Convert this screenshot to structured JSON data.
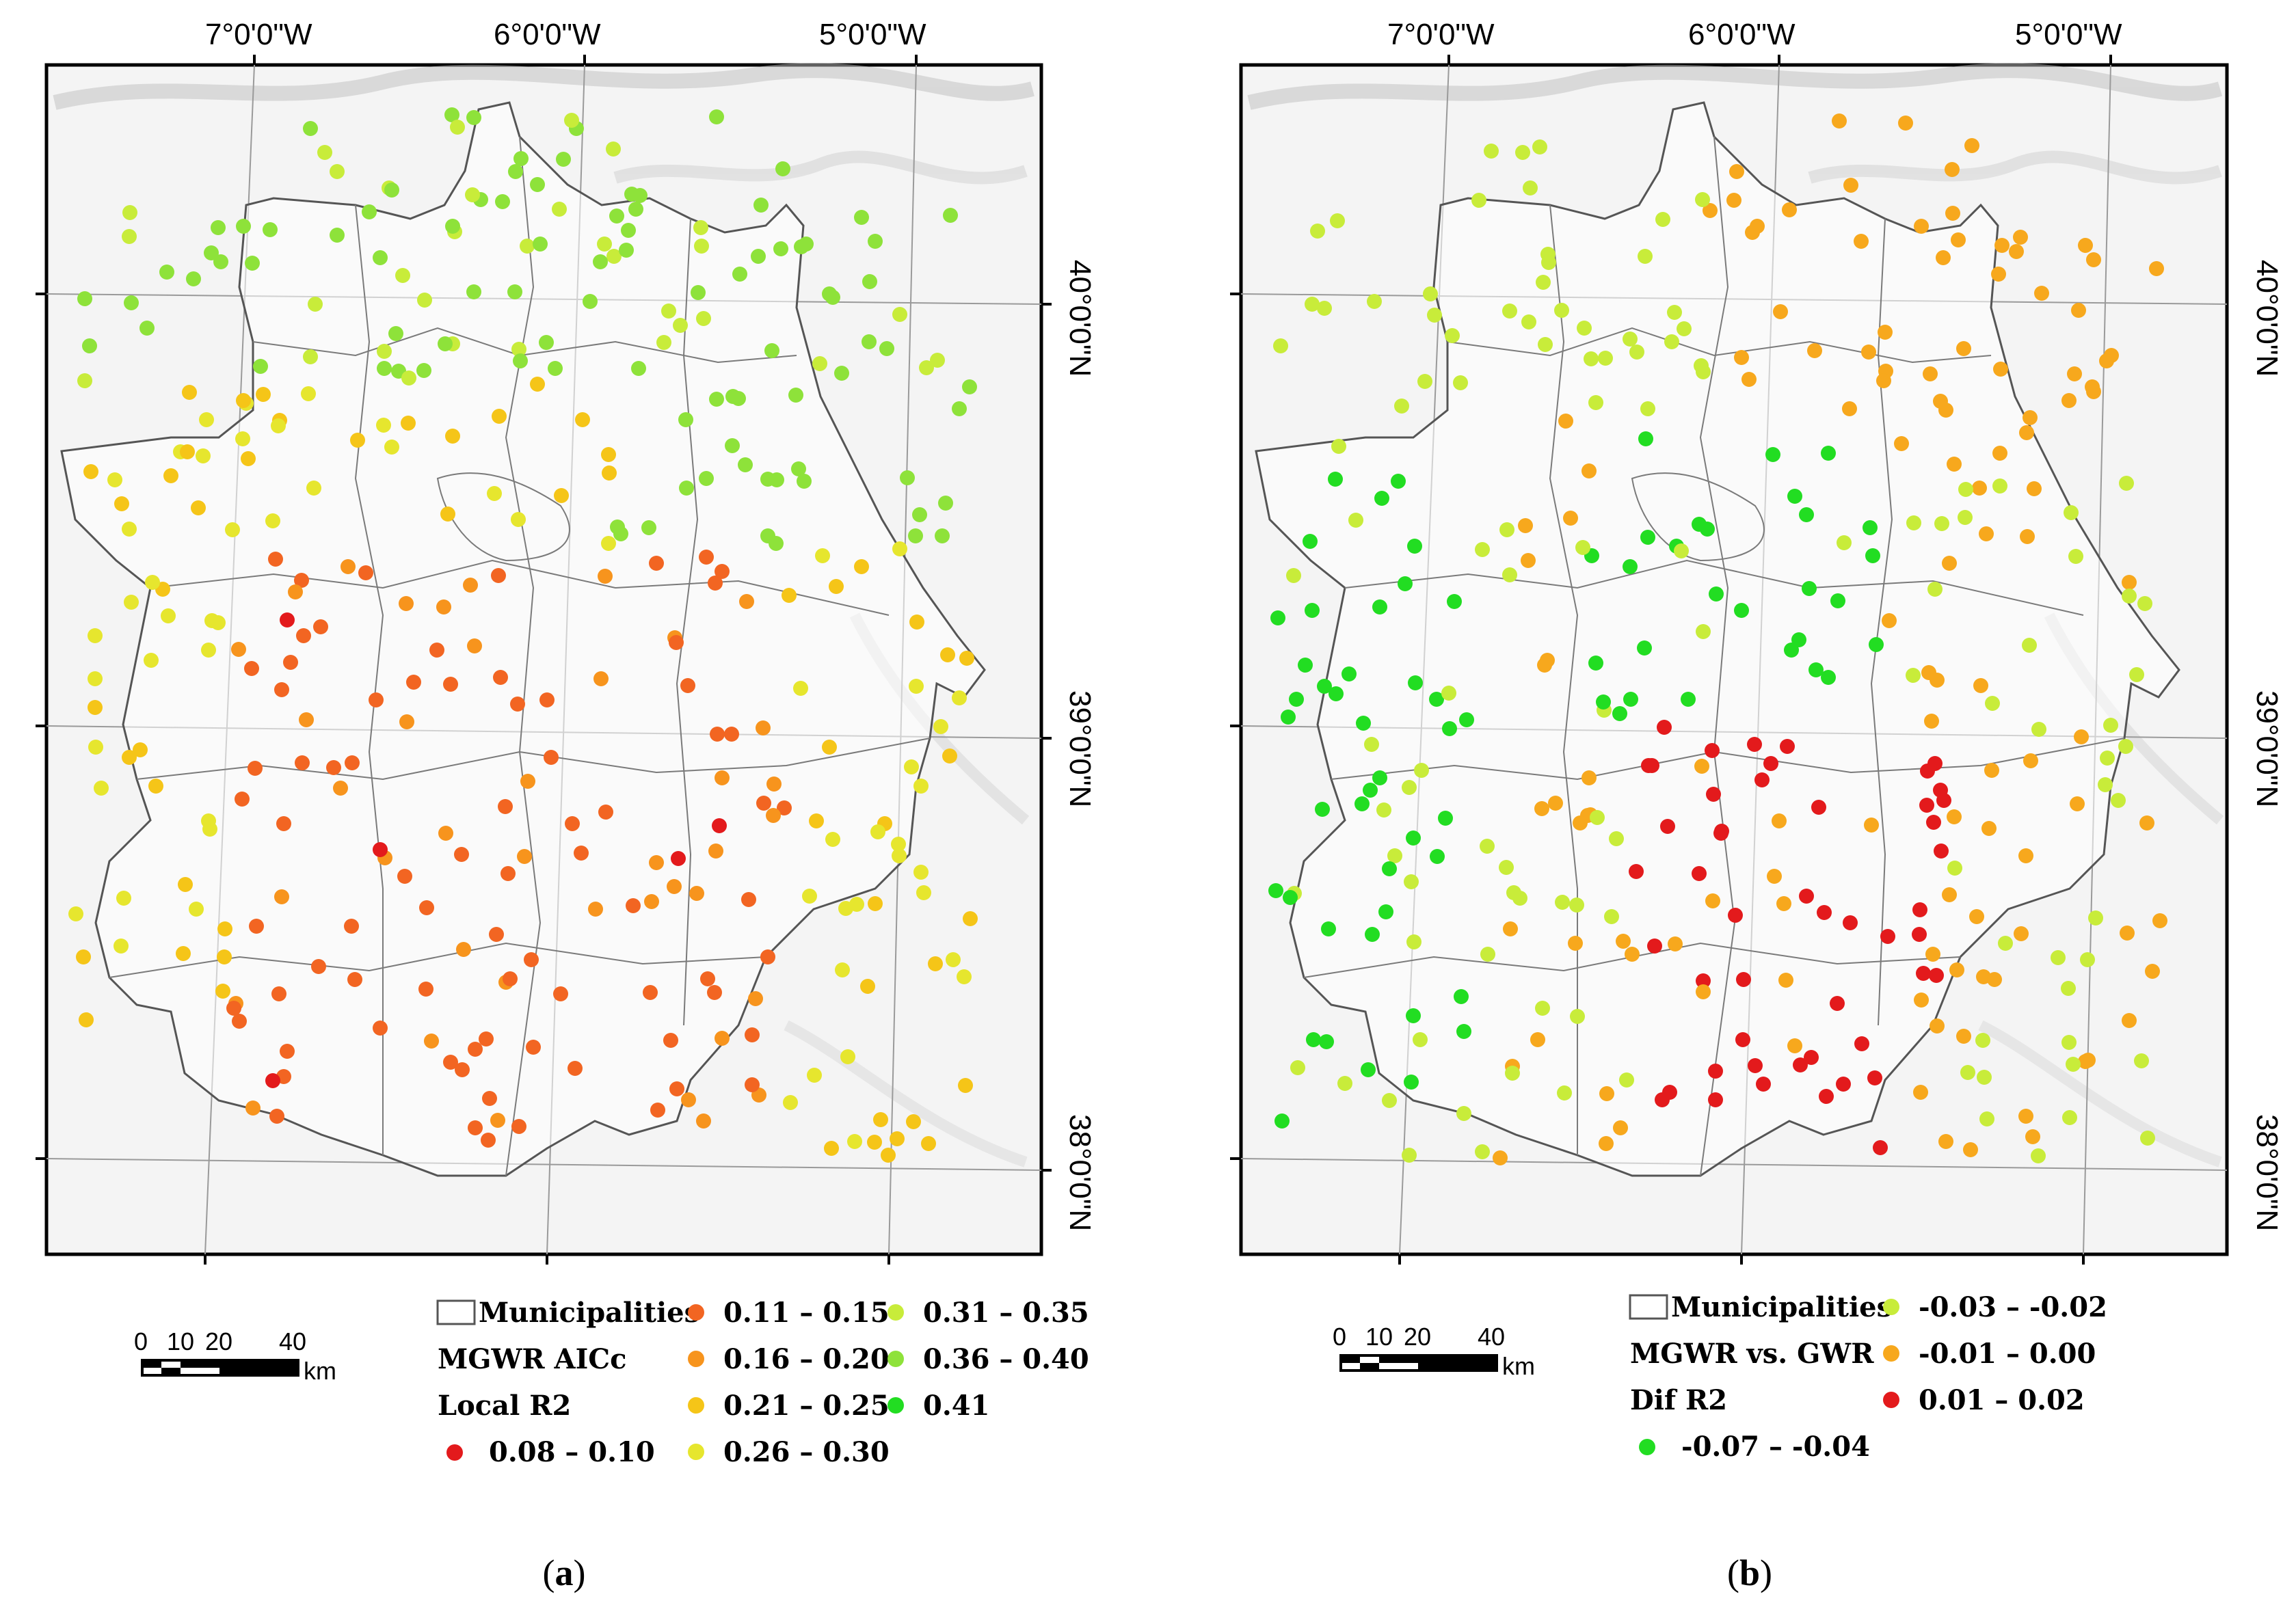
{
  "panels": [
    {
      "id": "a",
      "caption_letter": "a",
      "top_labels": [
        "7°0'0\"W",
        "6°0'0\"W",
        "5°0'0\"W"
      ],
      "right_labels": [
        "40°0'0\"N",
        "39°0'0\"N",
        "38°0'0\"N"
      ],
      "legend_title": [
        "MGWR AICc",
        "Local R2"
      ],
      "legend_municipalities": "Municipalities",
      "classes": [
        {
          "label": "0.08 – 0.10",
          "color": "#e31a1c"
        },
        {
          "label": "0.11 – 0.15",
          "color": "#f26522"
        },
        {
          "label": "0.16 – 0.20",
          "color": "#f7941d"
        },
        {
          "label": "0.21 – 0.25",
          "color": "#f5c518"
        },
        {
          "label": "0.26 – 0.30",
          "color": "#e6e62e"
        },
        {
          "label": "0.31 – 0.35",
          "color": "#c8ec3a"
        },
        {
          "label": "0.36 – 0.40",
          "color": "#8ee23a"
        },
        {
          "label": "0.41",
          "color": "#22dd22"
        }
      ]
    },
    {
      "id": "b",
      "caption_letter": "b",
      "top_labels": [
        "7°0'0\"W",
        "6°0'0\"W",
        "5°0'0\"W"
      ],
      "right_labels": [
        "40°0'0\"N",
        "39°0'0\"N",
        "38°0'0\"N"
      ],
      "legend_title": [
        "MGWR vs. GWR",
        "Dif R2"
      ],
      "legend_municipalities": "Municipalities",
      "classes": [
        {
          "label": "-0.07 – -0.04",
          "color": "#22dd22"
        },
        {
          "label": "-0.03 – -0.02",
          "color": "#c8ec3a"
        },
        {
          "label": "-0.01 – 0.00",
          "color": "#f7a81d"
        },
        {
          "label": "0.01 – 0.02",
          "color": "#e31a1c"
        }
      ]
    }
  ],
  "scale_bar": {
    "ticks": [
      "0",
      "10",
      "20",
      "40"
    ],
    "unit": "km"
  },
  "outline_color": "#555555"
}
